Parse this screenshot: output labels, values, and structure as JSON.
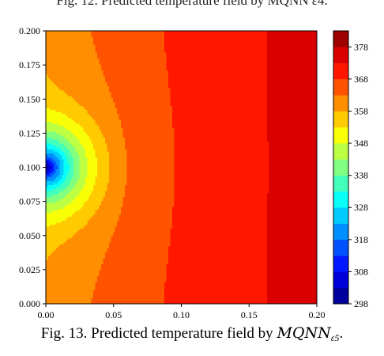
{
  "previous_caption": "Fig. 12. Predicted temperature field by MQNN ε4.",
  "caption": {
    "prefix": "Fig. 13.  Predicted temperature field by ",
    "model": "MQNN",
    "subscript": "ε5",
    "suffix": "."
  },
  "chart_data": {
    "type": "heatmap",
    "title": "",
    "xlabel": "",
    "ylabel": "",
    "xlim": [
      0.0,
      0.2
    ],
    "ylim": [
      0.0,
      0.2
    ],
    "x_ticks": [
      "0.00",
      "0.05",
      "0.10",
      "0.15",
      "0.20"
    ],
    "y_ticks": [
      "0.000",
      "0.025",
      "0.050",
      "0.075",
      "0.100",
      "0.125",
      "0.150",
      "0.175",
      "0.200"
    ],
    "colorbar": {
      "range": [
        298,
        383
      ],
      "ticks": [
        298,
        308,
        318,
        328,
        338,
        348,
        358,
        368,
        378
      ],
      "colormap": "jet",
      "levels": 17
    },
    "field": {
      "description_points": [
        {
          "x": 0.0,
          "y": 0.1,
          "value": 298
        },
        {
          "x": 0.0,
          "y": 0.0,
          "value": 362
        },
        {
          "x": 0.0,
          "y": 0.2,
          "value": 362
        },
        {
          "x": 0.05,
          "y": 0.1,
          "value": 365
        },
        {
          "x": 0.1,
          "y": 0.1,
          "value": 373
        },
        {
          "x": 0.15,
          "y": 0.1,
          "value": 378
        },
        {
          "x": 0.2,
          "y": 0.1,
          "value": 383
        }
      ]
    }
  }
}
